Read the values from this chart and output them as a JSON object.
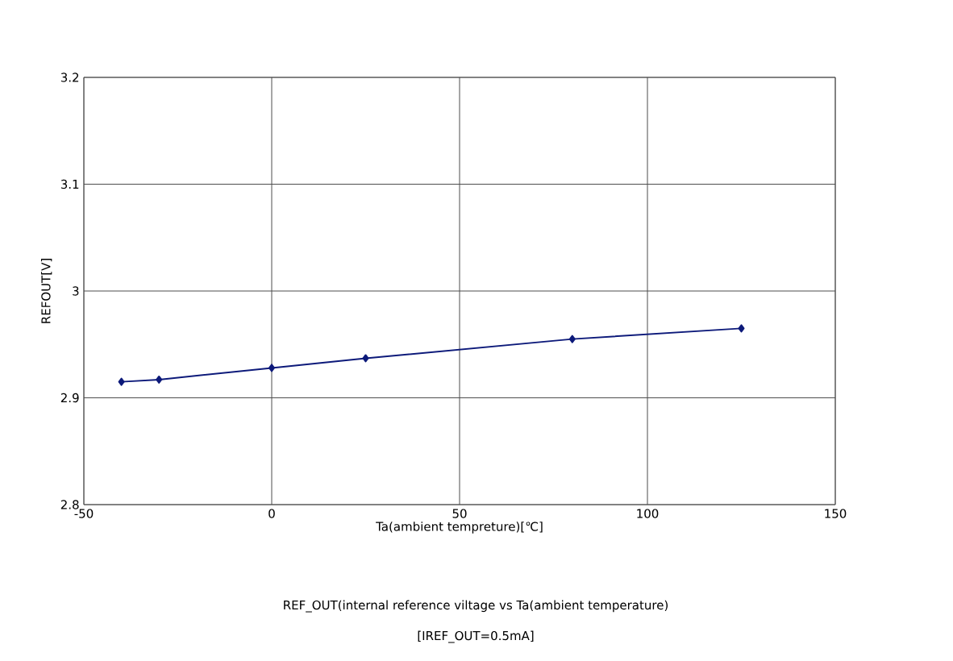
{
  "chart_data": {
    "type": "line",
    "xlabel": "Ta(ambient tempreture)[℃]",
    "ylabel": "REFOUT[V]",
    "annotations": [
      "REF_OUT(internal reference viltage vs Ta(ambient temperature)",
      "[IREF_OUT=0.5mA]"
    ],
    "x": [
      -40,
      -30,
      0,
      25,
      80,
      125
    ],
    "series": [
      {
        "color": "#0d1a7a",
        "values": [
          2.915,
          2.917,
          2.928,
          2.937,
          2.955,
          2.965
        ]
      }
    ],
    "xlim": [
      -50,
      150
    ],
    "xticks": [
      -50,
      0,
      50,
      100,
      150
    ],
    "ylim": [
      2.8,
      3.2
    ],
    "yticks": [
      2.8,
      2.9,
      3,
      3.1,
      3.2
    ],
    "grid": true,
    "marker": "diamond",
    "line_style": "solid"
  }
}
